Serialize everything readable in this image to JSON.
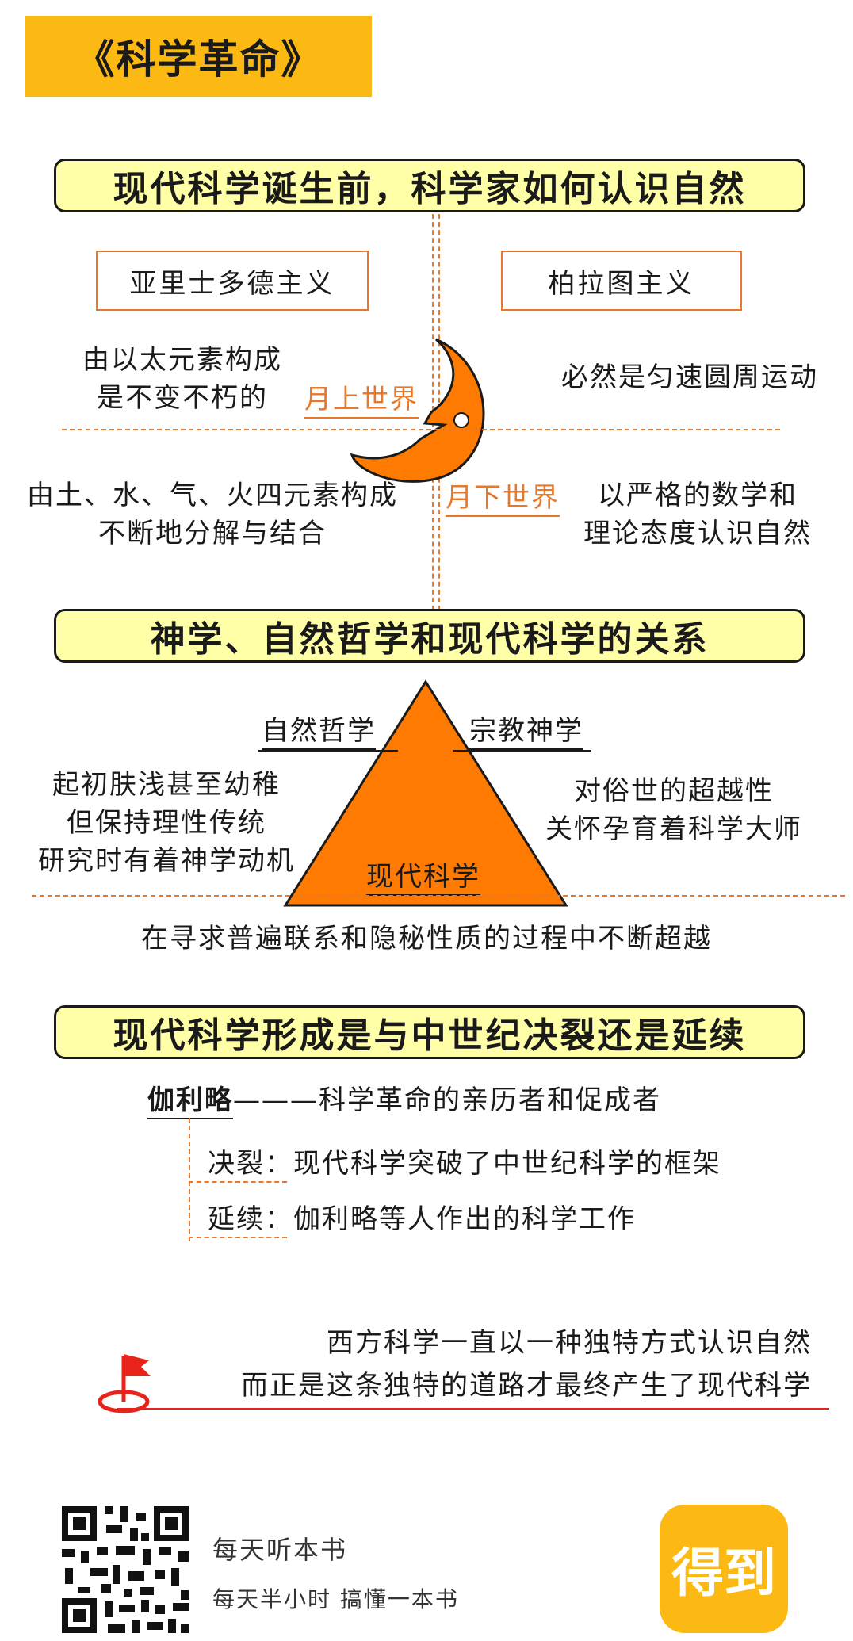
{
  "title": "《科学革命》",
  "section1": {
    "header": "现代科学诞生前，科学家如何认识自然",
    "left_label": "亚里士多德主义",
    "right_label": "柏拉图主义",
    "upper_left_lines": [
      "由以太元素构成",
      "是不变不朽的"
    ],
    "upper_world": "月上世界",
    "upper_right": "必然是匀速圆周运动",
    "lower_left_lines": [
      "由土、水、气、火四元素构成",
      "不断地分解与结合"
    ],
    "lower_world": "月下世界",
    "lower_right_lines": [
      "以严格的数学和",
      "理论态度认识自然"
    ]
  },
  "section2": {
    "header": "神学、自然哲学和现代科学的关系",
    "natural_philosophy": "自然哲学",
    "religious_theology": "宗教神学",
    "modern_science": "现代科学",
    "left_lines": [
      "起初肤浅甚至幼稚",
      "但保持理性传统",
      "研究时有着神学动机"
    ],
    "right_lines": [
      "对俗世的超越性",
      "关怀孕育着科学大师"
    ],
    "bottom_line": "在寻求普遍联系和隐秘性质的过程中不断超越"
  },
  "section3": {
    "header": "现代科学形成是与中世纪决裂还是延续",
    "galileo": "伽利略",
    "galileo_desc": "———科学革命的亲历者和促成者",
    "break_label": "决裂：",
    "break_text": "现代科学突破了中世纪科学的框架",
    "continue_label": "延续：",
    "continue_text": "伽利略等人作出的科学工作"
  },
  "conclusion": {
    "lines": [
      "西方科学一直以一种独特方式认识自然",
      "而正是这条独特的道路才最终产生了现代科学"
    ]
  },
  "footer": {
    "line1": "每天听本书",
    "line2": "每天半小时  搞懂一本书",
    "logo_text": "得到"
  },
  "colors": {
    "title_bg": "#FDB913",
    "header_bg": "#FFFFA8",
    "accent_orange": "#E8782A",
    "shape_orange": "#FF7A00",
    "flag_red": "#E8231A"
  }
}
